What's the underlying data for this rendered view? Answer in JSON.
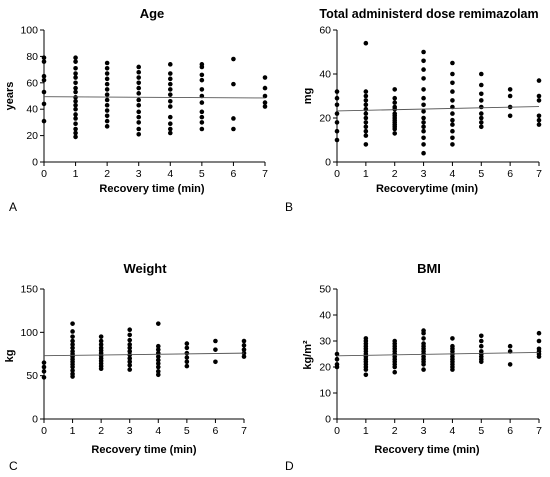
{
  "chart_data": [
    {
      "type": "scatter",
      "panel_label": "A",
      "title": "Age",
      "xlabel": "Recovery time (min)",
      "ylabel": "years",
      "xlim": [
        0,
        7
      ],
      "ylim": [
        0,
        100
      ],
      "xticks": [
        0,
        1,
        2,
        3,
        4,
        5,
        6,
        7
      ],
      "yticks": [
        0,
        20,
        40,
        60,
        80,
        100
      ],
      "grid": false,
      "trendline": {
        "x": [
          0,
          7
        ],
        "y": [
          49.5,
          48.5
        ]
      },
      "points": [
        [
          0,
          79
        ],
        [
          0,
          76
        ],
        [
          0,
          65
        ],
        [
          0,
          62
        ],
        [
          0,
          53
        ],
        [
          0,
          44
        ],
        [
          0,
          31
        ],
        [
          1,
          79
        ],
        [
          1,
          76
        ],
        [
          1,
          71
        ],
        [
          1,
          67
        ],
        [
          1,
          64
        ],
        [
          1,
          60
        ],
        [
          1,
          56
        ],
        [
          1,
          53
        ],
        [
          1,
          49
        ],
        [
          1,
          46
        ],
        [
          1,
          43
        ],
        [
          1,
          40
        ],
        [
          1,
          36
        ],
        [
          1,
          33
        ],
        [
          1,
          29
        ],
        [
          1,
          25
        ],
        [
          1,
          22
        ],
        [
          1,
          19
        ],
        [
          2,
          75
        ],
        [
          2,
          71
        ],
        [
          2,
          67
        ],
        [
          2,
          63
        ],
        [
          2,
          59
        ],
        [
          2,
          55
        ],
        [
          2,
          51
        ],
        [
          2,
          47
        ],
        [
          2,
          43
        ],
        [
          2,
          39
        ],
        [
          2,
          35
        ],
        [
          2,
          31
        ],
        [
          2,
          27
        ],
        [
          3,
          72
        ],
        [
          3,
          68
        ],
        [
          3,
          64
        ],
        [
          3,
          60
        ],
        [
          3,
          56
        ],
        [
          3,
          52
        ],
        [
          3,
          47
        ],
        [
          3,
          43
        ],
        [
          3,
          38
        ],
        [
          3,
          34
        ],
        [
          3,
          30
        ],
        [
          3,
          25
        ],
        [
          3,
          21
        ],
        [
          4,
          74
        ],
        [
          4,
          67
        ],
        [
          4,
          63
        ],
        [
          4,
          59
        ],
        [
          4,
          55
        ],
        [
          4,
          51
        ],
        [
          4,
          46
        ],
        [
          4,
          42
        ],
        [
          4,
          34
        ],
        [
          4,
          29
        ],
        [
          4,
          25
        ],
        [
          4,
          22
        ],
        [
          5,
          74
        ],
        [
          5,
          72
        ],
        [
          5,
          66
        ],
        [
          5,
          62
        ],
        [
          5,
          55
        ],
        [
          5,
          50
        ],
        [
          5,
          45
        ],
        [
          5,
          38
        ],
        [
          5,
          34
        ],
        [
          5,
          30
        ],
        [
          5,
          25
        ],
        [
          6,
          78
        ],
        [
          6,
          59
        ],
        [
          6,
          33
        ],
        [
          6,
          25
        ],
        [
          7,
          64
        ],
        [
          7,
          56
        ],
        [
          7,
          50
        ],
        [
          7,
          45
        ],
        [
          7,
          42
        ]
      ]
    },
    {
      "type": "scatter",
      "panel_label": "B",
      "title": "Total administerd dose remimazolam",
      "xlabel": "Recoverytime (min)",
      "ylabel": "mg",
      "xlim": [
        0,
        7
      ],
      "ylim": [
        0,
        60
      ],
      "xticks": [
        0,
        1,
        2,
        3,
        4,
        5,
        6,
        7
      ],
      "yticks": [
        0,
        20,
        40,
        60
      ],
      "grid": false,
      "trendline": {
        "x": [
          0,
          7
        ],
        "y": [
          23.2,
          25.2
        ]
      },
      "points": [
        [
          0,
          32
        ],
        [
          0,
          29
        ],
        [
          0,
          26
        ],
        [
          0,
          22
        ],
        [
          0,
          18
        ],
        [
          0,
          14
        ],
        [
          0,
          10
        ],
        [
          1,
          54
        ],
        [
          1,
          32
        ],
        [
          1,
          30
        ],
        [
          1,
          28
        ],
        [
          1,
          26
        ],
        [
          1,
          24
        ],
        [
          1,
          22
        ],
        [
          1,
          20
        ],
        [
          1,
          18
        ],
        [
          1,
          16
        ],
        [
          1,
          14
        ],
        [
          1,
          12
        ],
        [
          1,
          8
        ],
        [
          2,
          33
        ],
        [
          2,
          29
        ],
        [
          2,
          27
        ],
        [
          2,
          25
        ],
        [
          2,
          24
        ],
        [
          2,
          22
        ],
        [
          2,
          21
        ],
        [
          2,
          20
        ],
        [
          2,
          19
        ],
        [
          2,
          18
        ],
        [
          2,
          17
        ],
        [
          2,
          16
        ],
        [
          2,
          15
        ],
        [
          2,
          13
        ],
        [
          3,
          50
        ],
        [
          3,
          46
        ],
        [
          3,
          42
        ],
        [
          3,
          38
        ],
        [
          3,
          33
        ],
        [
          3,
          29
        ],
        [
          3,
          26
        ],
        [
          3,
          23
        ],
        [
          3,
          20
        ],
        [
          3,
          18
        ],
        [
          3,
          16
        ],
        [
          3,
          14
        ],
        [
          3,
          11
        ],
        [
          3,
          8
        ],
        [
          3,
          4
        ],
        [
          4,
          45
        ],
        [
          4,
          40
        ],
        [
          4,
          36
        ],
        [
          4,
          32
        ],
        [
          4,
          28
        ],
        [
          4,
          25
        ],
        [
          4,
          22
        ],
        [
          4,
          19
        ],
        [
          4,
          17
        ],
        [
          4,
          14
        ],
        [
          4,
          11
        ],
        [
          4,
          8
        ],
        [
          5,
          40
        ],
        [
          5,
          35
        ],
        [
          5,
          31
        ],
        [
          5,
          28
        ],
        [
          5,
          25
        ],
        [
          5,
          22
        ],
        [
          5,
          20
        ],
        [
          5,
          18
        ],
        [
          5,
          16
        ],
        [
          6,
          33
        ],
        [
          6,
          30
        ],
        [
          6,
          25
        ],
        [
          6,
          21
        ],
        [
          7,
          37
        ],
        [
          7,
          30
        ],
        [
          7,
          28
        ],
        [
          7,
          21
        ],
        [
          7,
          19
        ],
        [
          7,
          17
        ]
      ]
    },
    {
      "type": "scatter",
      "panel_label": "C",
      "title": "Weight",
      "xlabel": "Recovery time (min)",
      "ylabel": "kg",
      "xlim": [
        0,
        7
      ],
      "ylim": [
        0,
        150
      ],
      "xticks": [
        0,
        1,
        2,
        3,
        4,
        5,
        6,
        7
      ],
      "yticks": [
        0,
        50,
        100,
        150
      ],
      "grid": false,
      "trendline": {
        "x": [
          0,
          7
        ],
        "y": [
          73,
          76
        ]
      },
      "points": [
        [
          0,
          65
        ],
        [
          0,
          60
        ],
        [
          0,
          55
        ],
        [
          0,
          48
        ],
        [
          1,
          110
        ],
        [
          1,
          101
        ],
        [
          1,
          95
        ],
        [
          1,
          90
        ],
        [
          1,
          86
        ],
        [
          1,
          82
        ],
        [
          1,
          78
        ],
        [
          1,
          75
        ],
        [
          1,
          72
        ],
        [
          1,
          69
        ],
        [
          1,
          66
        ],
        [
          1,
          63
        ],
        [
          1,
          60
        ],
        [
          1,
          56
        ],
        [
          1,
          52
        ],
        [
          1,
          49
        ],
        [
          2,
          95
        ],
        [
          2,
          90
        ],
        [
          2,
          86
        ],
        [
          2,
          82
        ],
        [
          2,
          79
        ],
        [
          2,
          76
        ],
        [
          2,
          73
        ],
        [
          2,
          70
        ],
        [
          2,
          67
        ],
        [
          2,
          64
        ],
        [
          2,
          61
        ],
        [
          2,
          58
        ],
        [
          3,
          103
        ],
        [
          3,
          97
        ],
        [
          3,
          91
        ],
        [
          3,
          86
        ],
        [
          3,
          82
        ],
        [
          3,
          78
        ],
        [
          3,
          74
        ],
        [
          3,
          70
        ],
        [
          3,
          66
        ],
        [
          3,
          62
        ],
        [
          3,
          57
        ],
        [
          4,
          110
        ],
        [
          4,
          84
        ],
        [
          4,
          80
        ],
        [
          4,
          76
        ],
        [
          4,
          72
        ],
        [
          4,
          68
        ],
        [
          4,
          64
        ],
        [
          4,
          60
        ],
        [
          4,
          55
        ],
        [
          4,
          51
        ],
        [
          5,
          87
        ],
        [
          5,
          82
        ],
        [
          5,
          76
        ],
        [
          5,
          71
        ],
        [
          5,
          66
        ],
        [
          5,
          61
        ],
        [
          6,
          90
        ],
        [
          6,
          80
        ],
        [
          6,
          66
        ],
        [
          7,
          90
        ],
        [
          7,
          85
        ],
        [
          7,
          80
        ],
        [
          7,
          76
        ],
        [
          7,
          72
        ]
      ]
    },
    {
      "type": "scatter",
      "panel_label": "D",
      "title": "BMI",
      "xlabel": "Recovery time (min)",
      "ylabel": "kg/m²",
      "xlim": [
        0,
        7
      ],
      "ylim": [
        0,
        50
      ],
      "xticks": [
        0,
        1,
        2,
        3,
        4,
        5,
        6,
        7
      ],
      "yticks": [
        0,
        10,
        20,
        30,
        40,
        50
      ],
      "grid": false,
      "trendline": {
        "x": [
          0,
          7
        ],
        "y": [
          24.3,
          25.6
        ]
      },
      "points": [
        [
          0,
          25
        ],
        [
          0,
          23
        ],
        [
          0,
          21
        ],
        [
          0,
          20
        ],
        [
          1,
          31
        ],
        [
          1,
          30
        ],
        [
          1,
          29
        ],
        [
          1,
          28
        ],
        [
          1,
          27
        ],
        [
          1,
          26
        ],
        [
          1,
          25
        ],
        [
          1,
          24
        ],
        [
          1,
          23
        ],
        [
          1,
          22
        ],
        [
          1,
          21
        ],
        [
          1,
          20
        ],
        [
          1,
          19
        ],
        [
          1,
          17
        ],
        [
          2,
          30
        ],
        [
          2,
          29
        ],
        [
          2,
          28
        ],
        [
          2,
          27
        ],
        [
          2,
          26
        ],
        [
          2,
          25
        ],
        [
          2,
          24
        ],
        [
          2,
          23
        ],
        [
          2,
          22
        ],
        [
          2,
          21
        ],
        [
          2,
          20
        ],
        [
          2,
          18
        ],
        [
          3,
          34
        ],
        [
          3,
          33
        ],
        [
          3,
          31
        ],
        [
          3,
          29
        ],
        [
          3,
          28
        ],
        [
          3,
          27
        ],
        [
          3,
          26
        ],
        [
          3,
          25
        ],
        [
          3,
          24
        ],
        [
          3,
          23
        ],
        [
          3,
          22
        ],
        [
          3,
          21
        ],
        [
          3,
          19
        ],
        [
          4,
          31
        ],
        [
          4,
          28
        ],
        [
          4,
          27
        ],
        [
          4,
          26
        ],
        [
          4,
          25
        ],
        [
          4,
          24
        ],
        [
          4,
          23
        ],
        [
          4,
          22
        ],
        [
          4,
          21
        ],
        [
          4,
          20
        ],
        [
          4,
          19
        ],
        [
          5,
          32
        ],
        [
          5,
          30
        ],
        [
          5,
          28
        ],
        [
          5,
          26
        ],
        [
          5,
          25
        ],
        [
          5,
          24
        ],
        [
          5,
          23
        ],
        [
          5,
          22
        ],
        [
          6,
          28
        ],
        [
          6,
          26
        ],
        [
          6,
          21
        ],
        [
          7,
          33
        ],
        [
          7,
          30
        ],
        [
          7,
          27
        ],
        [
          7,
          26
        ],
        [
          7,
          25
        ],
        [
          7,
          24
        ]
      ]
    }
  ]
}
